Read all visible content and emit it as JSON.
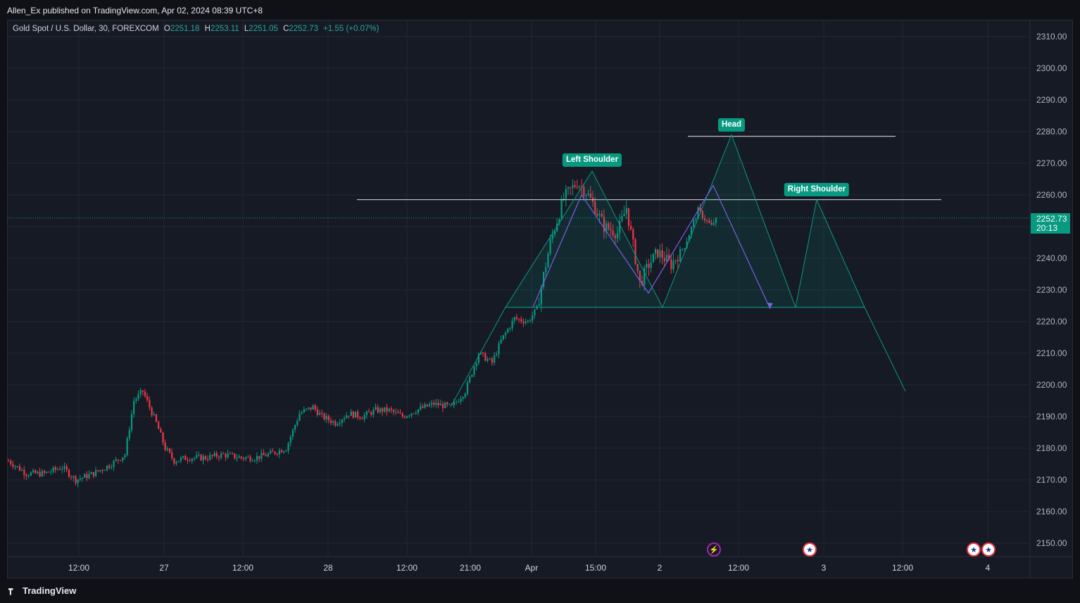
{
  "header": {
    "published": "Allen_Ex published on TradingView.com, Apr 02, 2024 08:39 UTC+8"
  },
  "legend": {
    "symbol": "Gold Spot / U.S. Dollar, 30, FOREXCOM",
    "o_label": "O",
    "o_value": "2251.18",
    "h_label": "H",
    "h_value": "2253.11",
    "l_label": "L",
    "l_value": "2251.05",
    "c_label": "C",
    "c_value": "2252.73",
    "change": "+1.55 (+0.07%)"
  },
  "last_price": {
    "price": "2252.73",
    "countdown": "20:13"
  },
  "price_axis": [
    "2310.00",
    "2300.00",
    "2290.00",
    "2280.00",
    "2270.00",
    "2260.00",
    "2250.00",
    "2240.00",
    "2230.00",
    "2220.00",
    "2210.00",
    "2200.00",
    "2190.00",
    "2180.00",
    "2170.00",
    "2160.00",
    "2150.00"
  ],
  "time_axis": [
    "12:00",
    "27",
    "12:00",
    "28",
    "12:00",
    "21:00",
    "Apr",
    "15:00",
    "2",
    "12:00",
    "3",
    "12:00",
    "4"
  ],
  "annotations": {
    "left_shoulder": "Left Shoulder",
    "head": "Head",
    "right_shoulder": "Right Shoulder"
  },
  "events": [
    "lightning-event-icon",
    "us-flag-icon",
    "us-flag-icon",
    "us-flag-icon"
  ],
  "footer": {
    "brand": "TradingView"
  },
  "colors": {
    "up": "#089981",
    "down": "#f23645",
    "background": "#161a25",
    "pattern": "#089981",
    "projection": "#7b5fe0"
  },
  "chart_data": {
    "type": "candlestick",
    "symbol": "Gold Spot / U.S. Dollar",
    "interval": "30",
    "ylim": [
      2145,
      2315
    ],
    "last_close": 2252.73,
    "close_path": [
      [
        0,
        2176
      ],
      [
        8,
        2172
      ],
      [
        16,
        2172
      ],
      [
        24,
        2174
      ],
      [
        30,
        2170
      ],
      [
        38,
        2172
      ],
      [
        46,
        2175
      ],
      [
        52,
        2178
      ],
      [
        56,
        2195
      ],
      [
        60,
        2198
      ],
      [
        66,
        2188
      ],
      [
        70,
        2180
      ],
      [
        74,
        2176
      ],
      [
        80,
        2177
      ],
      [
        88,
        2177
      ],
      [
        96,
        2178
      ],
      [
        104,
        2177
      ],
      [
        110,
        2177
      ],
      [
        116,
        2178
      ],
      [
        124,
        2180
      ],
      [
        130,
        2191
      ],
      [
        136,
        2193
      ],
      [
        140,
        2190
      ],
      [
        146,
        2188
      ],
      [
        152,
        2191
      ],
      [
        158,
        2190
      ],
      [
        164,
        2192
      ],
      [
        170,
        2192
      ],
      [
        176,
        2190
      ],
      [
        182,
        2192
      ],
      [
        190,
        2194
      ],
      [
        198,
        2193
      ],
      [
        204,
        2198
      ],
      [
        210,
        2210
      ],
      [
        216,
        2207
      ],
      [
        220,
        2214
      ],
      [
        226,
        2221
      ],
      [
        232,
        2220
      ],
      [
        236,
        2224
      ],
      [
        242,
        2245
      ],
      [
        248,
        2259
      ],
      [
        254,
        2264
      ],
      [
        258,
        2261
      ],
      [
        262,
        2256
      ],
      [
        266,
        2250
      ],
      [
        272,
        2248
      ],
      [
        276,
        2256
      ],
      [
        282,
        2232
      ],
      [
        286,
        2238
      ],
      [
        290,
        2242
      ],
      [
        296,
        2238
      ],
      [
        302,
        2244
      ],
      [
        308,
        2255
      ],
      [
        314,
        2250
      ],
      [
        316,
        2252.73
      ]
    ],
    "key_levels": [
      2258.5,
      2278.5
    ],
    "pattern": {
      "name": "Head and Shoulders",
      "left_shoulder": 2267.5,
      "head": 2279,
      "right_shoulder": 2258.5,
      "neckline": 2224.5,
      "projection_target": 2198
    }
  }
}
